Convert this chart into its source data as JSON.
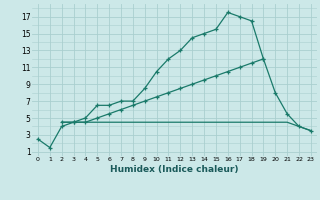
{
  "xlabel": "Humidex (Indice chaleur)",
  "bg_color": "#cce8e8",
  "grid_color": "#aacfcf",
  "line_color": "#1a7a6a",
  "xlim": [
    -0.5,
    23.5
  ],
  "ylim": [
    0.5,
    18.5
  ],
  "xticks": [
    0,
    1,
    2,
    3,
    4,
    5,
    6,
    7,
    8,
    9,
    10,
    11,
    12,
    13,
    14,
    15,
    16,
    17,
    18,
    19,
    20,
    21,
    22,
    23
  ],
  "yticks": [
    1,
    3,
    5,
    7,
    9,
    11,
    13,
    15,
    17
  ],
  "line1_x": [
    0,
    1,
    2,
    3,
    4,
    5,
    6,
    7,
    8,
    9,
    10,
    11,
    12,
    13,
    14,
    15,
    16,
    17,
    18,
    19
  ],
  "line1_y": [
    2.5,
    1.5,
    4.0,
    4.5,
    5.0,
    6.5,
    6.5,
    7.0,
    7.0,
    8.5,
    10.5,
    12.0,
    13.0,
    14.5,
    15.0,
    15.5,
    17.5,
    17.0,
    16.5,
    12.0
  ],
  "line2_x": [
    2,
    3,
    4,
    5,
    6,
    7,
    8,
    9,
    10,
    11,
    12,
    13,
    14,
    15,
    16,
    17,
    18,
    19,
    20,
    21,
    22,
    23
  ],
  "line2_y": [
    4.5,
    4.5,
    4.5,
    5.0,
    5.5,
    6.0,
    6.5,
    7.0,
    7.5,
    8.0,
    8.5,
    9.0,
    9.5,
    10.0,
    10.5,
    11.0,
    11.5,
    12.0,
    8.0,
    5.5,
    4.0,
    3.5
  ],
  "line3_x": [
    2,
    3,
    4,
    5,
    6,
    7,
    8,
    9,
    10,
    11,
    12,
    13,
    14,
    15,
    16,
    17,
    18,
    19,
    20,
    21,
    22,
    23
  ],
  "line3_y": [
    4.5,
    4.5,
    4.5,
    4.5,
    4.5,
    4.5,
    4.5,
    4.5,
    4.5,
    4.5,
    4.5,
    4.5,
    4.5,
    4.5,
    4.5,
    4.5,
    4.5,
    4.5,
    4.5,
    4.5,
    4.0,
    3.5
  ]
}
